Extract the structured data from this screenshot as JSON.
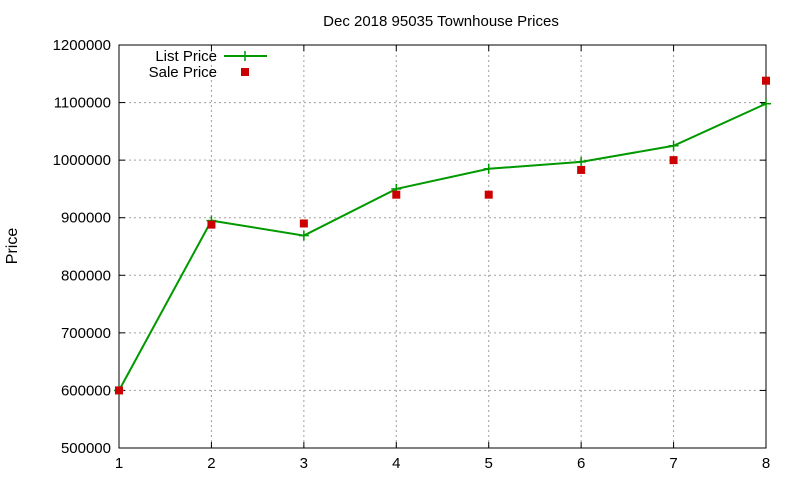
{
  "chart_data": {
    "type": "line",
    "title": "Dec 2018 95035 Townhouse Prices",
    "xlabel": "",
    "ylabel": "Price",
    "x": [
      1,
      2,
      3,
      4,
      5,
      6,
      7,
      8
    ],
    "xlim": [
      1,
      8
    ],
    "ylim": [
      500000,
      1200000
    ],
    "x_ticks": [
      "1",
      "2",
      "3",
      "4",
      "5",
      "6",
      "7",
      "8"
    ],
    "y_ticks": [
      "500000",
      "600000",
      "700000",
      "800000",
      "900000",
      "1000000",
      "1100000",
      "1200000"
    ],
    "grid": true,
    "legend_position": "top-left",
    "series": [
      {
        "name": "List Price",
        "style": "line-with-plus-markers",
        "color": "#009900",
        "values": [
          600000,
          895000,
          869000,
          950000,
          985000,
          997000,
          1025000,
          1098000
        ]
      },
      {
        "name": "Sale Price",
        "style": "square-markers",
        "color": "#cc0000",
        "values": [
          600000,
          888000,
          890000,
          940000,
          940000,
          983000,
          1000000,
          1138000
        ]
      }
    ]
  }
}
